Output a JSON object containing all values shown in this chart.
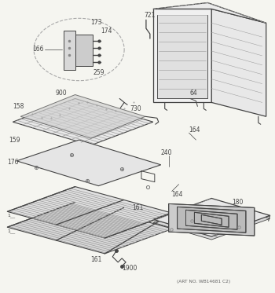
{
  "bg_color": "#f5f5f0",
  "lc": "#999999",
  "dc": "#444444",
  "tc": "#444444",
  "art_no": "(ART NO. WB14681 C2)",
  "figsize": [
    3.5,
    3.73
  ],
  "dpi": 100
}
